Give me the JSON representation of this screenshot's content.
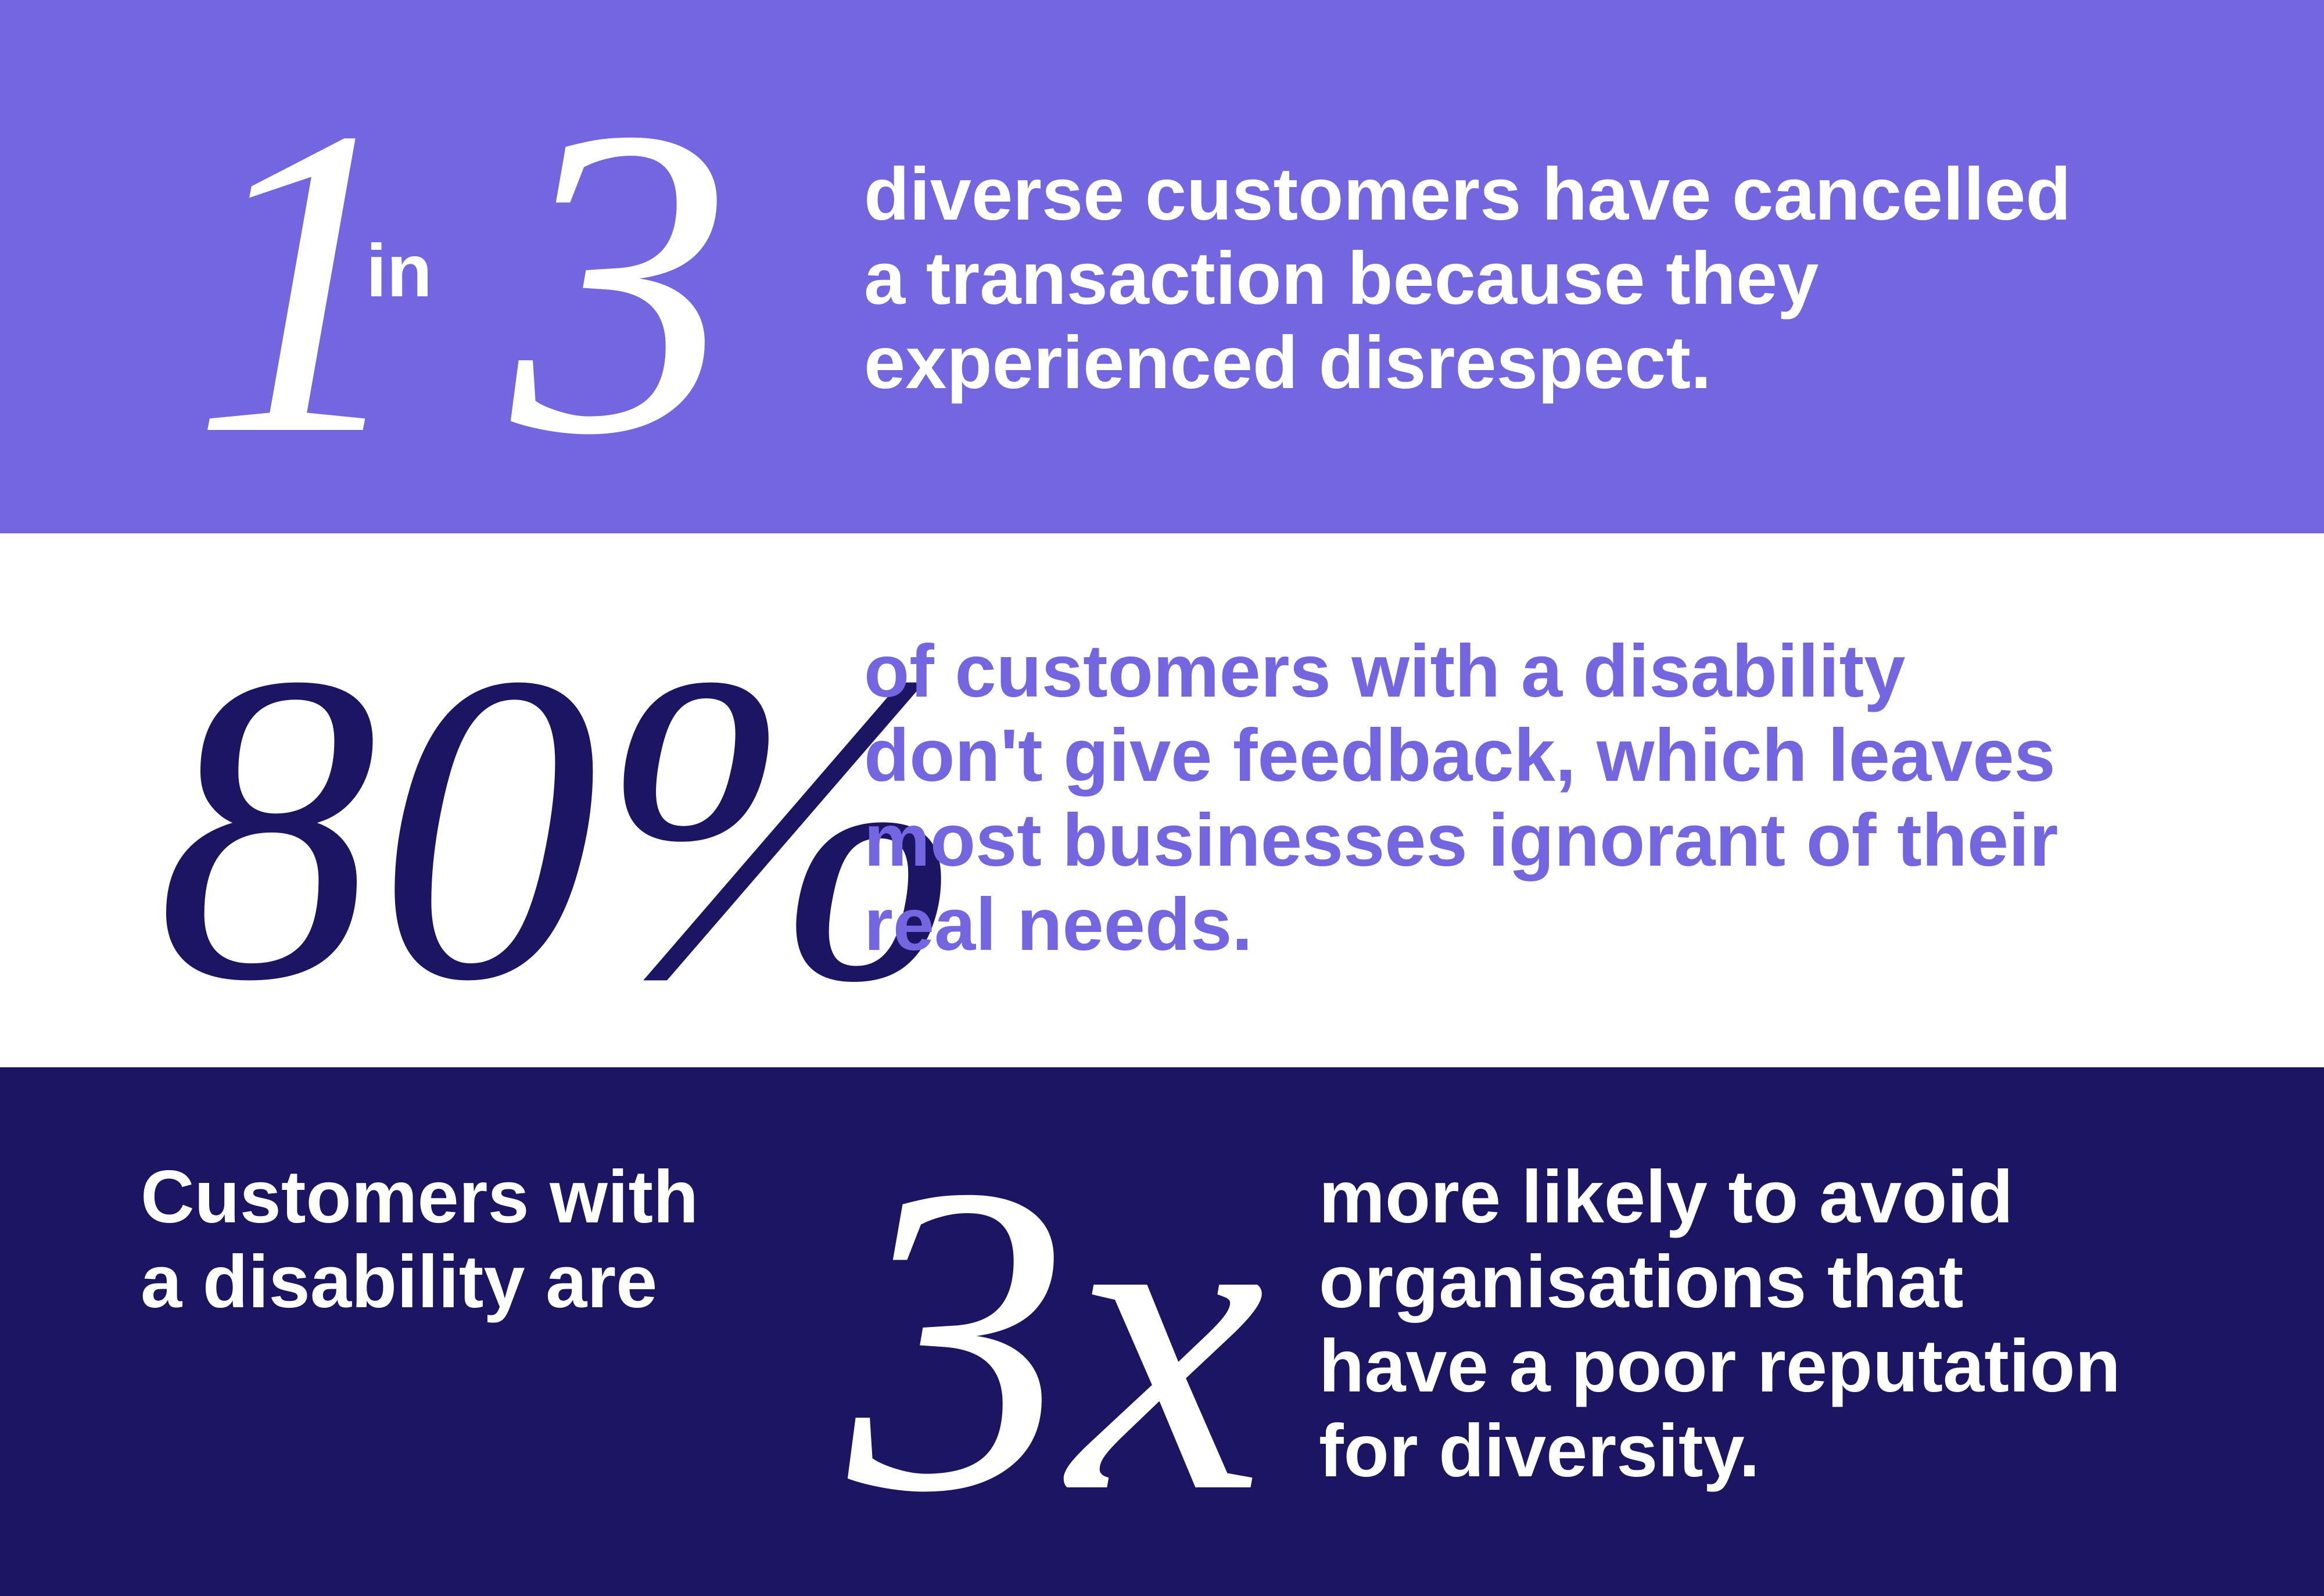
{
  "sections": [
    {
      "stat": [
        "1",
        "in",
        "3"
      ],
      "lines": [
        "diverse customers have cancelled",
        "a transaction because they",
        "experienced disrespect."
      ]
    },
    {
      "stat": [
        "80%"
      ],
      "lines": [
        "of customers with a disability",
        "don't give feedback, which leaves",
        "most businesses ignorant of their",
        "real needs."
      ]
    },
    {
      "lead": [
        "Customers with",
        "a disability are"
      ],
      "stat": [
        "3x"
      ],
      "lines": [
        "more likely to avoid",
        "organisations that",
        "have a poor reputation",
        "for diversity."
      ]
    }
  ]
}
